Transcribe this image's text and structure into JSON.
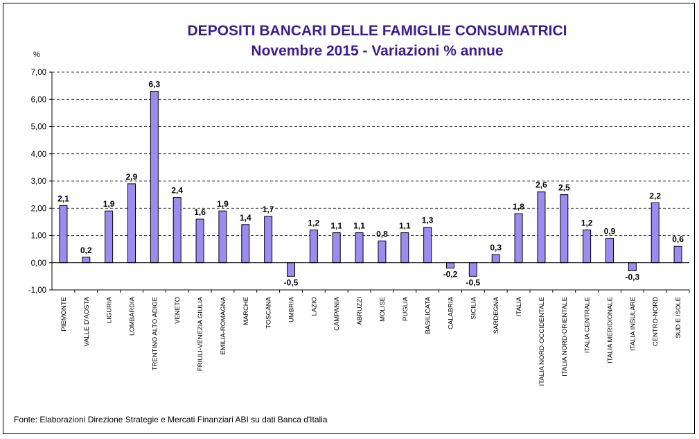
{
  "title": "DEPOSITI BANCARI DELLE FAMIGLIE CONSUMATRICI",
  "subtitle": "Novembre 2015 - Variazioni % annue",
  "source": "Fonte: Elaborazioni Direzione Strategie e Mercati Finanziari ABI su dati Banca d'Italia",
  "colors": {
    "bar_fill": "#9a8cf2",
    "bar_stroke": "#000000",
    "title": "#3b1a9c",
    "grid": "#000000"
  },
  "chart_data": {
    "type": "bar",
    "ylabel": "%",
    "xlabel": "",
    "ylim": [
      -1,
      7
    ],
    "yticks": [
      "-1,00",
      "0,00",
      "1,00",
      "2,00",
      "3,00",
      "4,00",
      "5,00",
      "6,00",
      "7,00"
    ],
    "grid": "dashed horizontal",
    "categories": [
      "PIEMONTE",
      "VALLE D'AOSTA",
      "LIGURIA",
      "LOMBARDIA",
      "TRENTINO ALTO ADIGE",
      "VENETO",
      "FRIULI-VENEZIA GIULIA",
      "EMILIA-ROMAGNA",
      "MARCHE",
      "TOSCANA",
      "UMBRIA",
      "LAZIO",
      "CAMPANIA",
      "ABRUZZI",
      "MOLISE",
      "PUGLIA",
      "BASILICATA",
      "CALABRIA",
      "SICILIA",
      "SARDEGNA",
      "ITALIA",
      "ITALIA NORD-OCCIDENTALE",
      "ITALIA NORD-ORIENTALE",
      "ITALIA CENTRALE",
      "ITALIA MERIDIONALE",
      "ITALIA INSULARE",
      "CENTRO-NORD",
      "SUD E ISOLE"
    ],
    "values": [
      2.1,
      0.2,
      1.9,
      2.9,
      6.3,
      2.4,
      1.6,
      1.9,
      1.4,
      1.7,
      -0.5,
      1.2,
      1.1,
      1.1,
      0.8,
      1.1,
      1.3,
      -0.2,
      -0.5,
      0.3,
      1.8,
      2.6,
      2.5,
      1.2,
      0.9,
      -0.3,
      2.2,
      0.6
    ],
    "labels": [
      "2,1",
      "0,2",
      "1,9",
      "2,9",
      "6,3",
      "2,4",
      "1,6",
      "1,9",
      "1,4",
      "1,7",
      "-0,5",
      "1,2",
      "1,1",
      "1,1",
      "0,8",
      "1,1",
      "1,3",
      "-0,2",
      "-0,5",
      "0,3",
      "1,8",
      "2,6",
      "2,5",
      "1,2",
      "0,9",
      "-0,3",
      "2,2",
      "0,6"
    ]
  }
}
